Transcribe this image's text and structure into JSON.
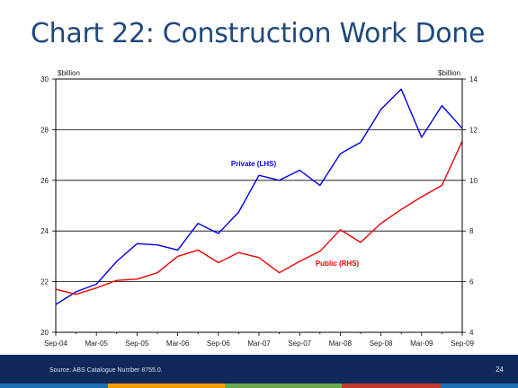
{
  "slide": {
    "title": "Chart 22: Construction Work Done",
    "source": "Source: ABS Catalogue Number 8755.0.",
    "page_number": "24"
  },
  "chart_data": {
    "type": "line",
    "left_axis": {
      "unit_label": "$billion",
      "ylim": [
        20,
        30
      ],
      "ticks": [
        "20",
        "22",
        "24",
        "26",
        "28",
        "30"
      ]
    },
    "right_axis": {
      "unit_label": "$billion",
      "ylim": [
        4,
        14
      ],
      "ticks": [
        "4",
        "6",
        "8",
        "10",
        "12",
        "14"
      ]
    },
    "x_tick_labels": [
      "Sep-04",
      "Mar-05",
      "Sep-05",
      "Mar-06",
      "Sep-06",
      "Mar-07",
      "Sep-07",
      "Mar-08",
      "Sep-08",
      "Mar-09",
      "Sep-09"
    ],
    "x": [
      "Sep-04",
      "Dec-04",
      "Mar-05",
      "Jun-05",
      "Sep-05",
      "Dec-05",
      "Mar-06",
      "Jun-06",
      "Sep-06",
      "Dec-06",
      "Mar-07",
      "Jun-07",
      "Sep-07",
      "Dec-07",
      "Mar-08",
      "Jun-08",
      "Sep-08",
      "Dec-08",
      "Mar-09",
      "Jun-09",
      "Sep-09"
    ],
    "gridlines": "horizontal",
    "series": [
      {
        "name": "Private (LHS)",
        "axis": "left",
        "color": "#0000ee",
        "values": [
          21.1,
          21.6,
          21.9,
          22.8,
          23.5,
          23.45,
          23.25,
          24.3,
          23.9,
          24.75,
          26.2,
          26.0,
          26.4,
          25.8,
          27.05,
          27.5,
          28.8,
          29.6,
          27.7,
          28.95,
          28.05
        ]
      },
      {
        "name": "Public (RHS)",
        "axis": "right",
        "color": "#ee0000",
        "values": [
          5.7,
          5.5,
          5.75,
          6.05,
          6.1,
          6.35,
          7.0,
          7.25,
          6.75,
          7.15,
          6.95,
          6.35,
          6.8,
          7.2,
          8.05,
          7.55,
          8.3,
          8.85,
          9.35,
          9.8,
          11.55
        ]
      }
    ]
  },
  "colors": {
    "title": "#1f497d",
    "footer": "#0f2a5a",
    "strip": [
      "#1f6fb4",
      "#f0a000",
      "#6aa84f",
      "#c0392b",
      "#1f6fb4"
    ]
  }
}
